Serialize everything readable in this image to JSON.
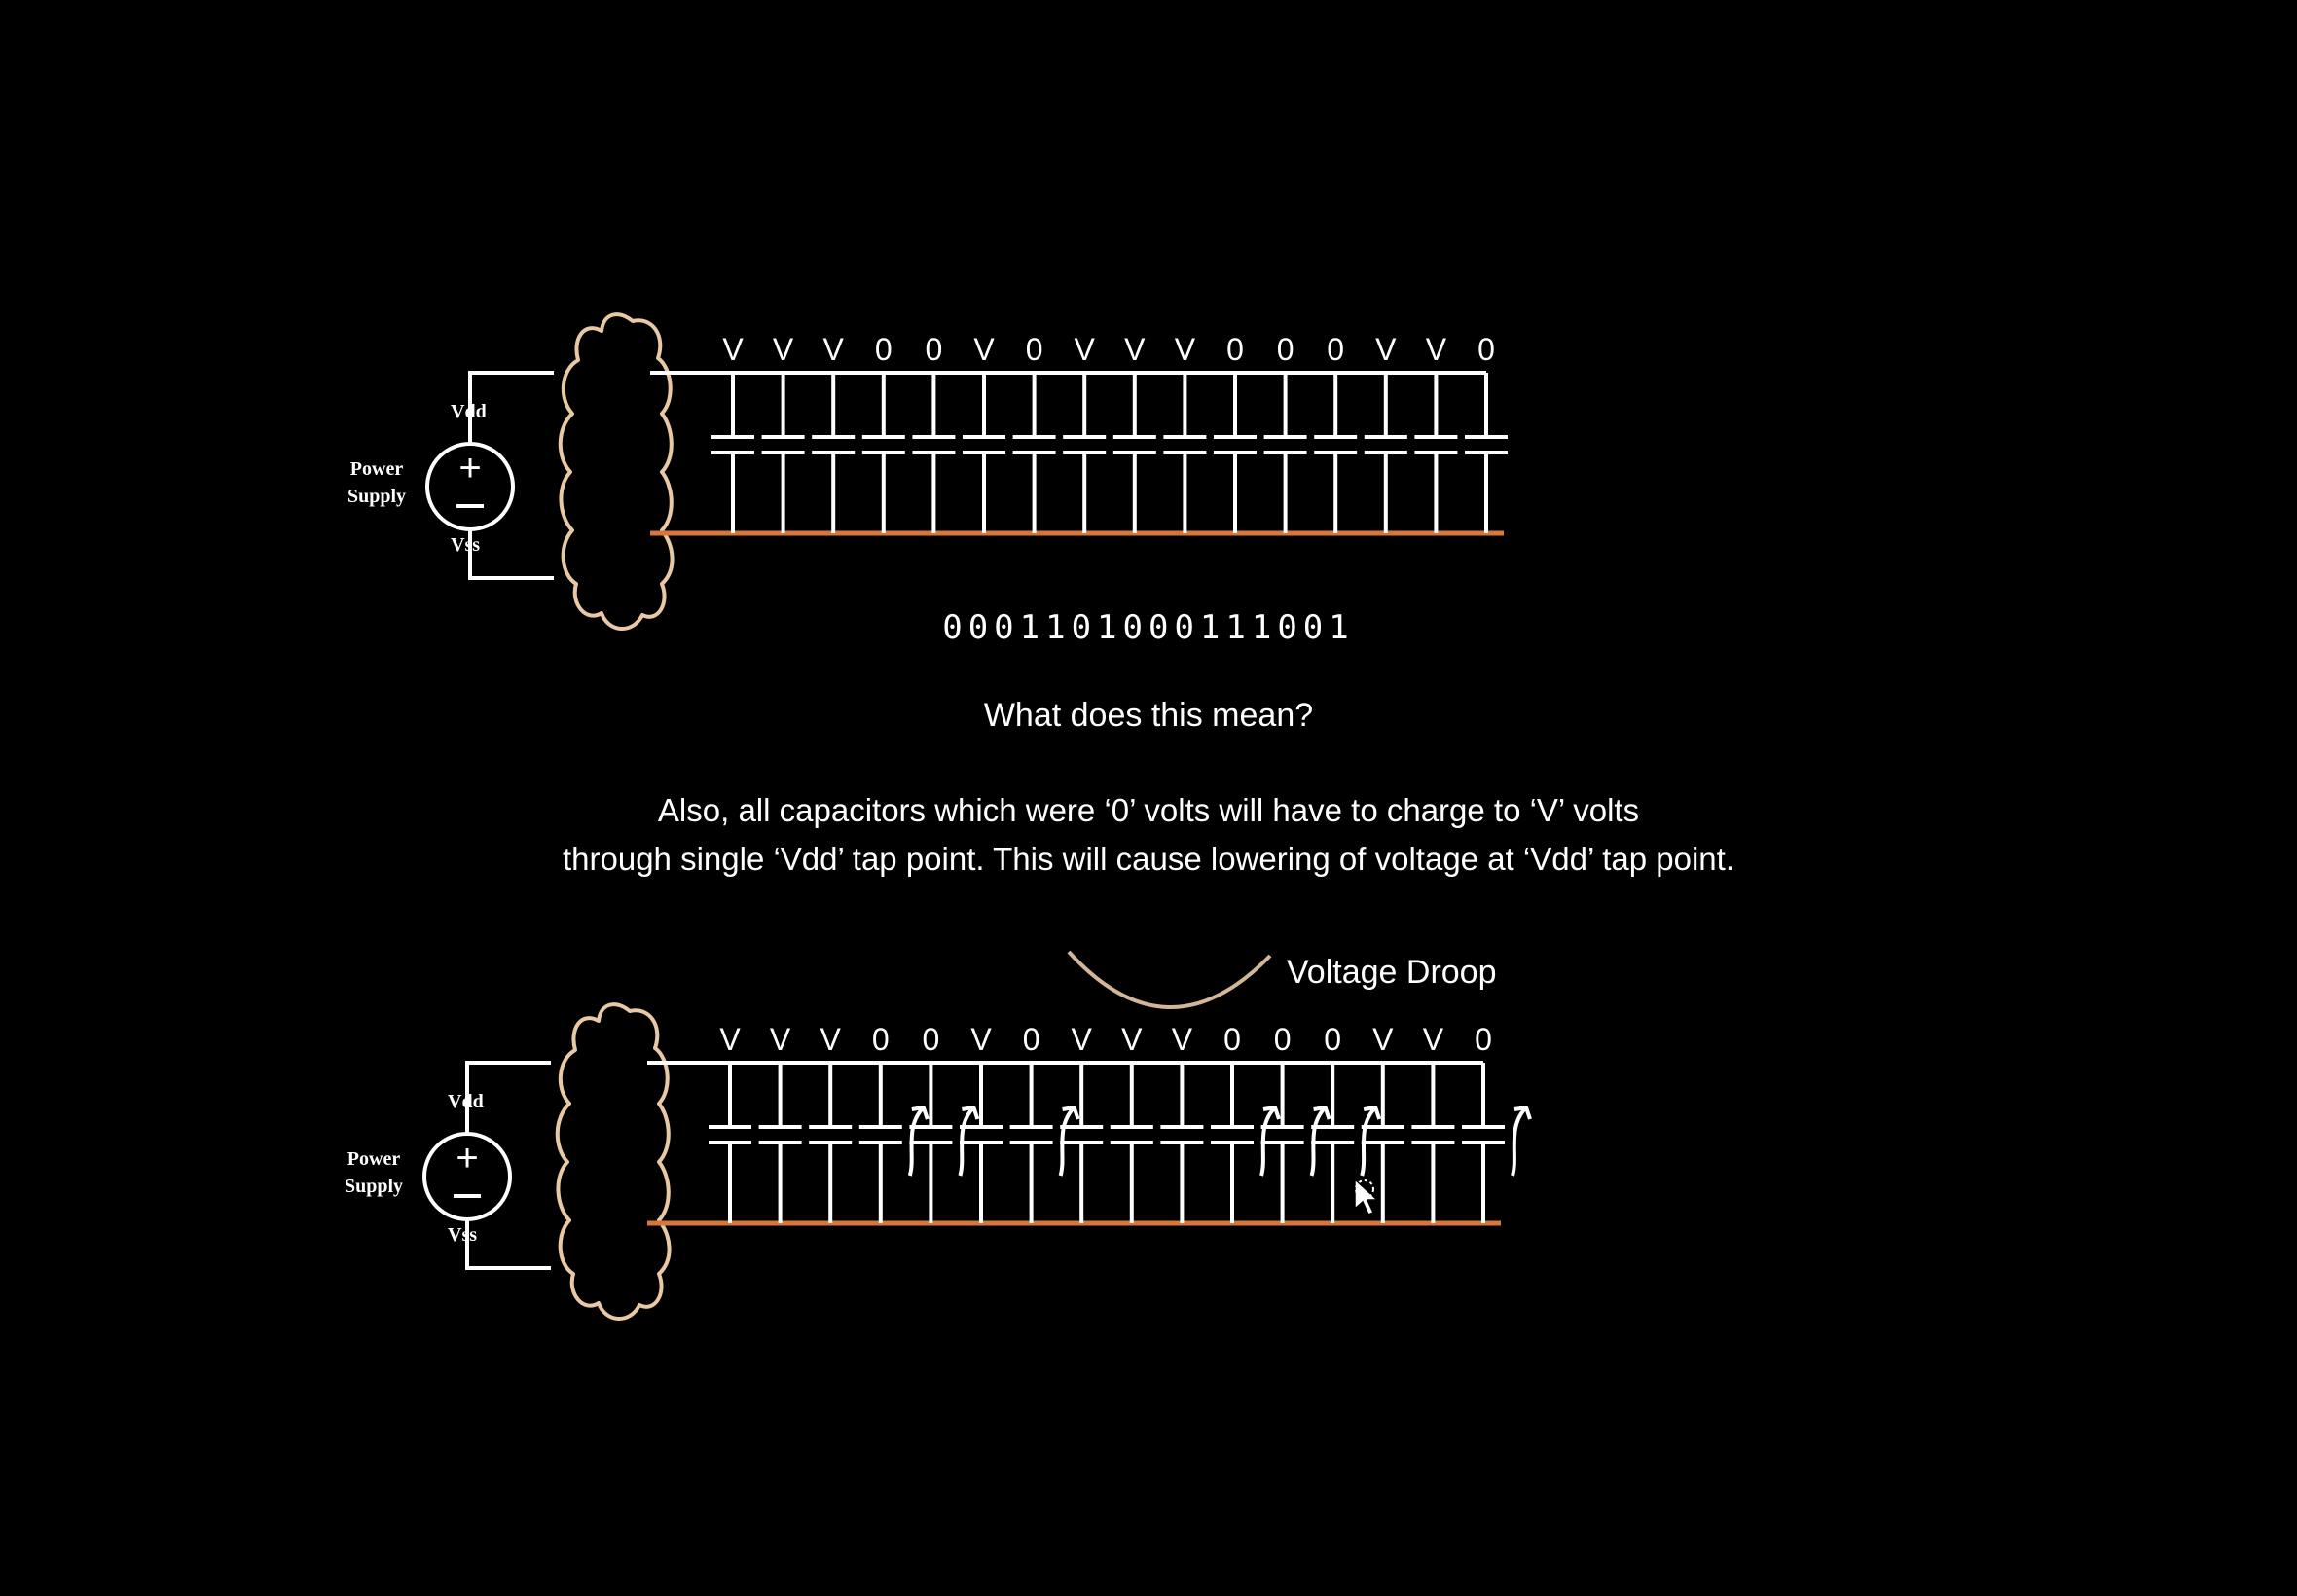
{
  "diagrams": [
    {
      "id": "top",
      "labels": {
        "power_supply_line1": "Power",
        "power_supply_line2": "Supply",
        "vdd": "Vdd",
        "vss": "Vss"
      },
      "capacitor_states": [
        "V",
        "V",
        "V",
        "0",
        "0",
        "V",
        "0",
        "V",
        "V",
        "V",
        "0",
        "0",
        "0",
        "V",
        "V",
        "0"
      ],
      "charging_arrows": false
    },
    {
      "id": "bottom",
      "labels": {
        "power_supply_line1": "Power",
        "power_supply_line2": "Supply",
        "vdd": "Vdd",
        "vss": "Vss"
      },
      "capacitor_states": [
        "V",
        "V",
        "V",
        "0",
        "0",
        "V",
        "0",
        "V",
        "V",
        "V",
        "0",
        "0",
        "0",
        "V",
        "V",
        "0"
      ],
      "charging_arrows": true
    }
  ],
  "bit_string": "0001101000111001",
  "question": "What does this mean?",
  "explanation_line1": "Also, all capacitors which were ‘0’ volts will have to charge to ‘V’ volts",
  "explanation_line2": "through single ‘Vdd’ tap point. This will cause lowering of voltage at ‘Vdd’ tap point.",
  "droop_label": "Voltage Droop",
  "colors": {
    "background": "#000000",
    "wire": "#ffffff",
    "ground_rail": "#d9773b",
    "cloud": "#e8c9a4",
    "droop_curve": "#d2b699"
  }
}
